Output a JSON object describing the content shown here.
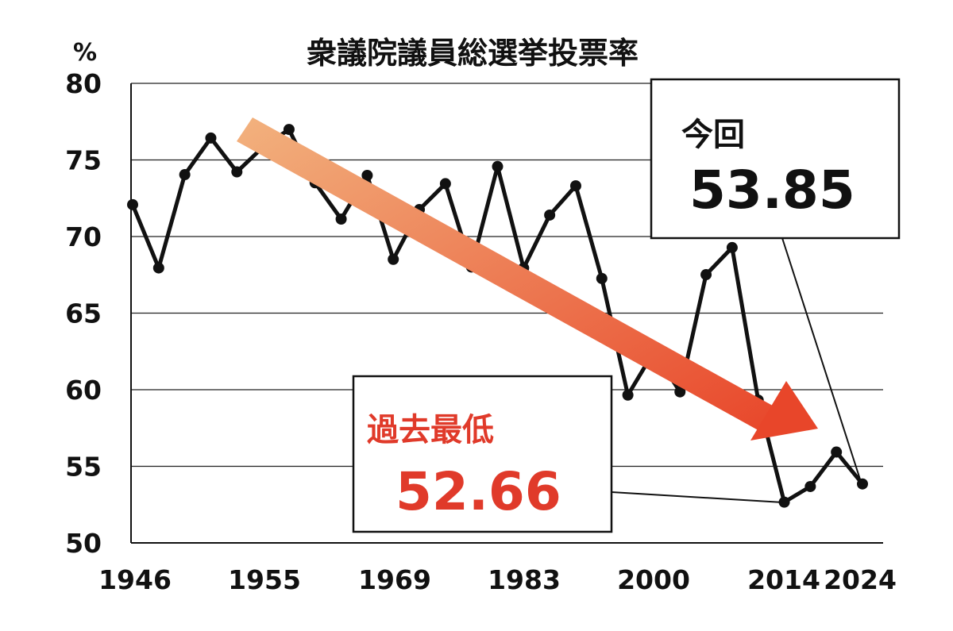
{
  "chart_data": {
    "type": "line",
    "title": "衆議院議員総選挙投票率",
    "unit": "%",
    "ylim": [
      50,
      80
    ],
    "y_ticks": [
      50,
      55,
      60,
      65,
      70,
      75,
      80
    ],
    "x_tick_labels": [
      "1946",
      "1955",
      "1969",
      "1983",
      "2000",
      "2014",
      "2024"
    ],
    "grid": true,
    "series": [
      {
        "values": [
          72.08,
          67.95,
          74.04,
          76.43,
          74.22,
          75.84,
          76.99,
          73.51,
          71.14,
          73.99,
          68.51,
          71.76,
          73.45,
          68.01,
          74.57,
          67.94,
          71.4,
          73.31,
          67.26,
          59.65,
          62.49,
          59.86,
          67.51,
          69.28,
          59.32,
          52.66,
          53.68,
          55.93,
          53.85
        ],
        "color": "#111111"
      }
    ],
    "trend_arrow_color": "#e8502a",
    "annotations": [
      {
        "label": "今回",
        "value": "53.85",
        "label_color": "#111111",
        "value_color": "#111111"
      },
      {
        "label": "過去最低",
        "value": "52.66",
        "label_color": "#e03a2a",
        "value_color": "#e03a2a"
      }
    ]
  }
}
